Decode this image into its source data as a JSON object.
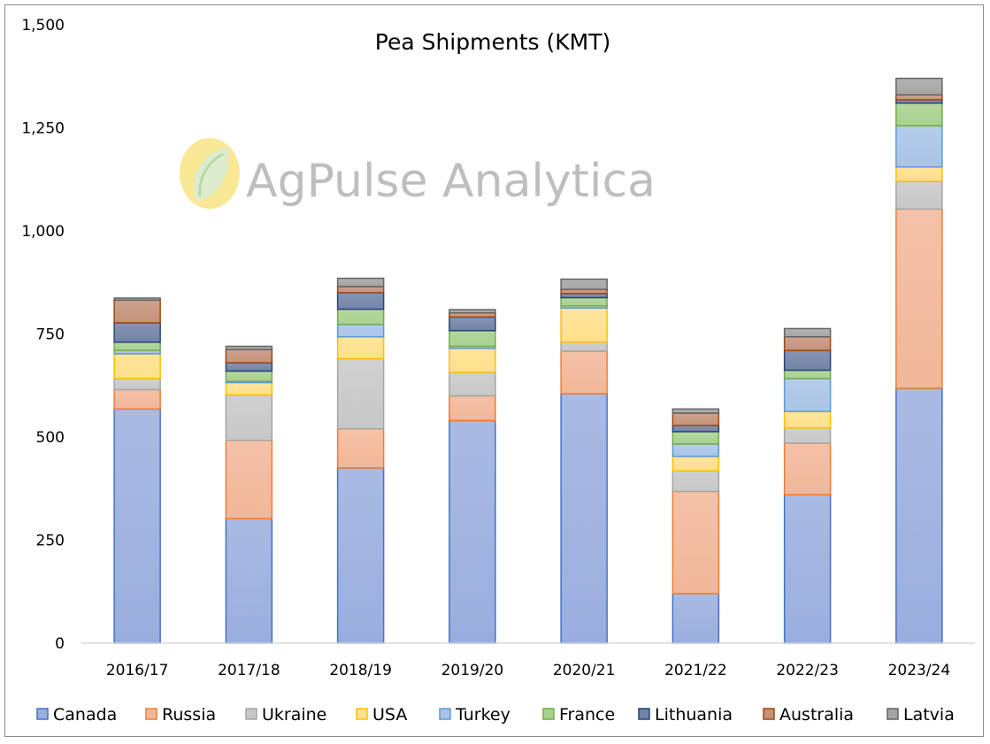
{
  "chart_data": {
    "type": "bar",
    "stacked": true,
    "title": "Pea Shipments  (KMT)",
    "xlabel": "",
    "ylabel": "",
    "ylim": [
      0,
      1500
    ],
    "yticks": [
      "0",
      "250",
      "500",
      "750",
      "1,000",
      "1,250",
      "1,500"
    ],
    "ytick_values": [
      0,
      250,
      500,
      750,
      1000,
      1250,
      1500
    ],
    "grid": false,
    "legend_position": "bottom",
    "categories": [
      "2016/17",
      "2017/18",
      "2018/19",
      "2019/20",
      "2020/21",
      "2021/22",
      "2022/23",
      "2023/24"
    ],
    "series": [
      {
        "name": "Canada",
        "fill": "#9aaede",
        "stroke": "#4472c4",
        "values": [
          568,
          302,
          425,
          540,
          605,
          120,
          360,
          618
        ]
      },
      {
        "name": "Russia",
        "fill": "#f2b799",
        "stroke": "#ed7d31",
        "values": [
          47,
          190,
          95,
          60,
          103,
          248,
          125,
          435
        ]
      },
      {
        "name": "Ukraine",
        "fill": "#c8c8c8",
        "stroke": "#a5a5a5",
        "values": [
          27,
          110,
          170,
          57,
          22,
          50,
          37,
          67
        ]
      },
      {
        "name": "USA",
        "fill": "#ffe08a",
        "stroke": "#ffc000",
        "values": [
          60,
          30,
          53,
          58,
          83,
          35,
          40,
          35
        ]
      },
      {
        "name": "Turkey",
        "fill": "#a9c4e8",
        "stroke": "#5b9bd5",
        "values": [
          8,
          3,
          30,
          5,
          5,
          30,
          80,
          100
        ]
      },
      {
        "name": "France",
        "fill": "#a9d18e",
        "stroke": "#70ad47",
        "values": [
          20,
          25,
          37,
          38,
          20,
          30,
          20,
          55
        ]
      },
      {
        "name": "Lithuania",
        "fill": "#7283a8",
        "stroke": "#264478",
        "values": [
          47,
          20,
          40,
          33,
          10,
          15,
          48,
          8
        ]
      },
      {
        "name": "Australia",
        "fill": "#c4927a",
        "stroke": "#9e480e",
        "values": [
          55,
          32,
          15,
          10,
          10,
          30,
          33,
          12
        ]
      },
      {
        "name": "Latvia",
        "fill": "#a5a5a5",
        "stroke": "#636363",
        "values": [
          5,
          8,
          20,
          8,
          25,
          10,
          20,
          40
        ]
      }
    ]
  },
  "watermark": {
    "text": "AgPulse Analytica",
    "colors": {
      "sun": "#f7e27a",
      "leaf_light": "#d9ecd2",
      "leaf_dark": "#b7d8a8"
    }
  }
}
